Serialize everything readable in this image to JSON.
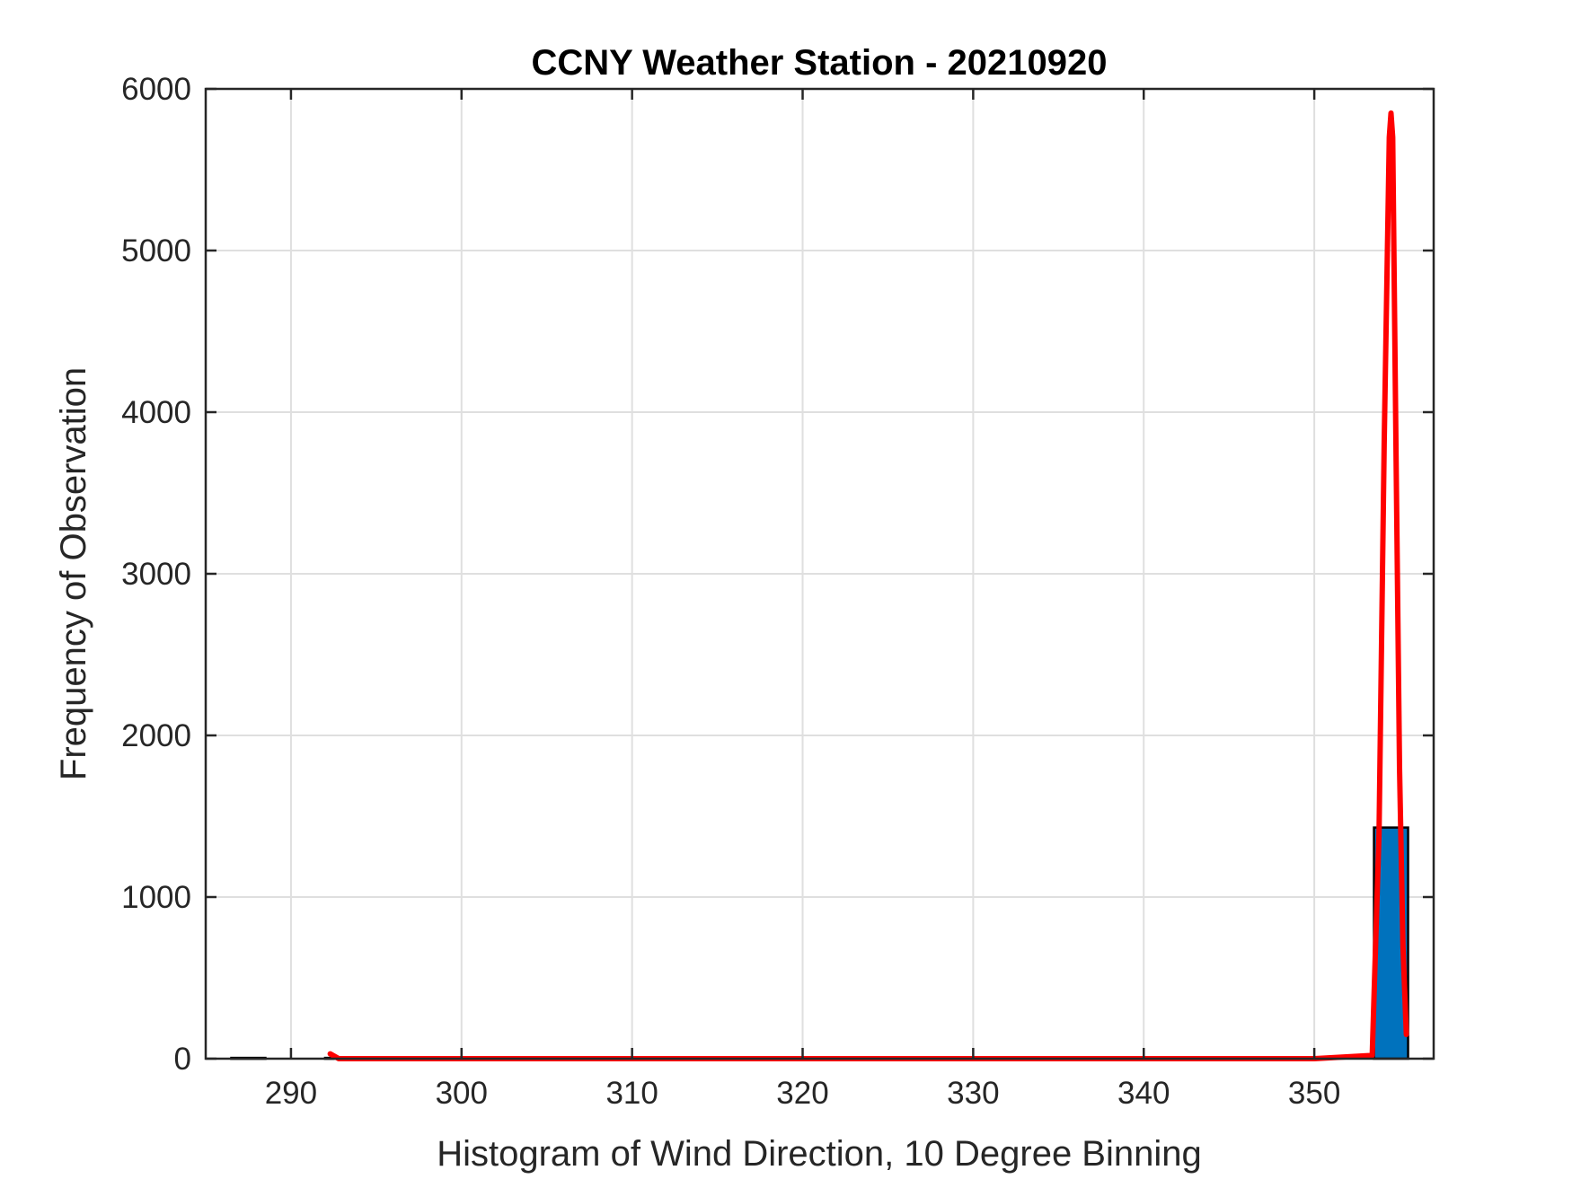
{
  "chart_data": {
    "type": "bar",
    "title": "CCNY Weather Station - 20210920",
    "xlabel": "Histogram of Wind Direction, 10 Degree Binning",
    "ylabel": "Frequency of Observation",
    "xlim": [
      285,
      357
    ],
    "ylim": [
      0,
      6000
    ],
    "grid": true,
    "xticks": [
      290,
      300,
      310,
      320,
      330,
      340,
      350
    ],
    "yticks": [
      0,
      1000,
      2000,
      3000,
      4000,
      5000,
      6000
    ],
    "bars": [
      {
        "x0": 286.5,
        "x1": 288.5,
        "value": 5
      },
      {
        "x0": 292.0,
        "x1": 292.5,
        "value": 5
      },
      {
        "x0": 353.5,
        "x1": 355.5,
        "value": 1430
      }
    ],
    "series": [
      {
        "type": "line",
        "x": [
          292.3,
          292.8,
          300,
          310,
          320,
          330,
          340,
          350,
          353.4,
          353.8,
          354.1,
          354.4,
          354.5,
          354.6,
          354.8,
          355.0,
          355.2,
          355.4
        ],
        "y": [
          30,
          0,
          0,
          0,
          0,
          0,
          0,
          0,
          20,
          1400,
          3800,
          5700,
          5850,
          5700,
          3700,
          1800,
          700,
          150
        ]
      }
    ],
    "colors": {
      "bar_fill": "#0072BD",
      "bar_edge": "#000000",
      "fit_line": "#FF0000",
      "axis": "#262626",
      "grid": "#DFDFDF"
    }
  }
}
